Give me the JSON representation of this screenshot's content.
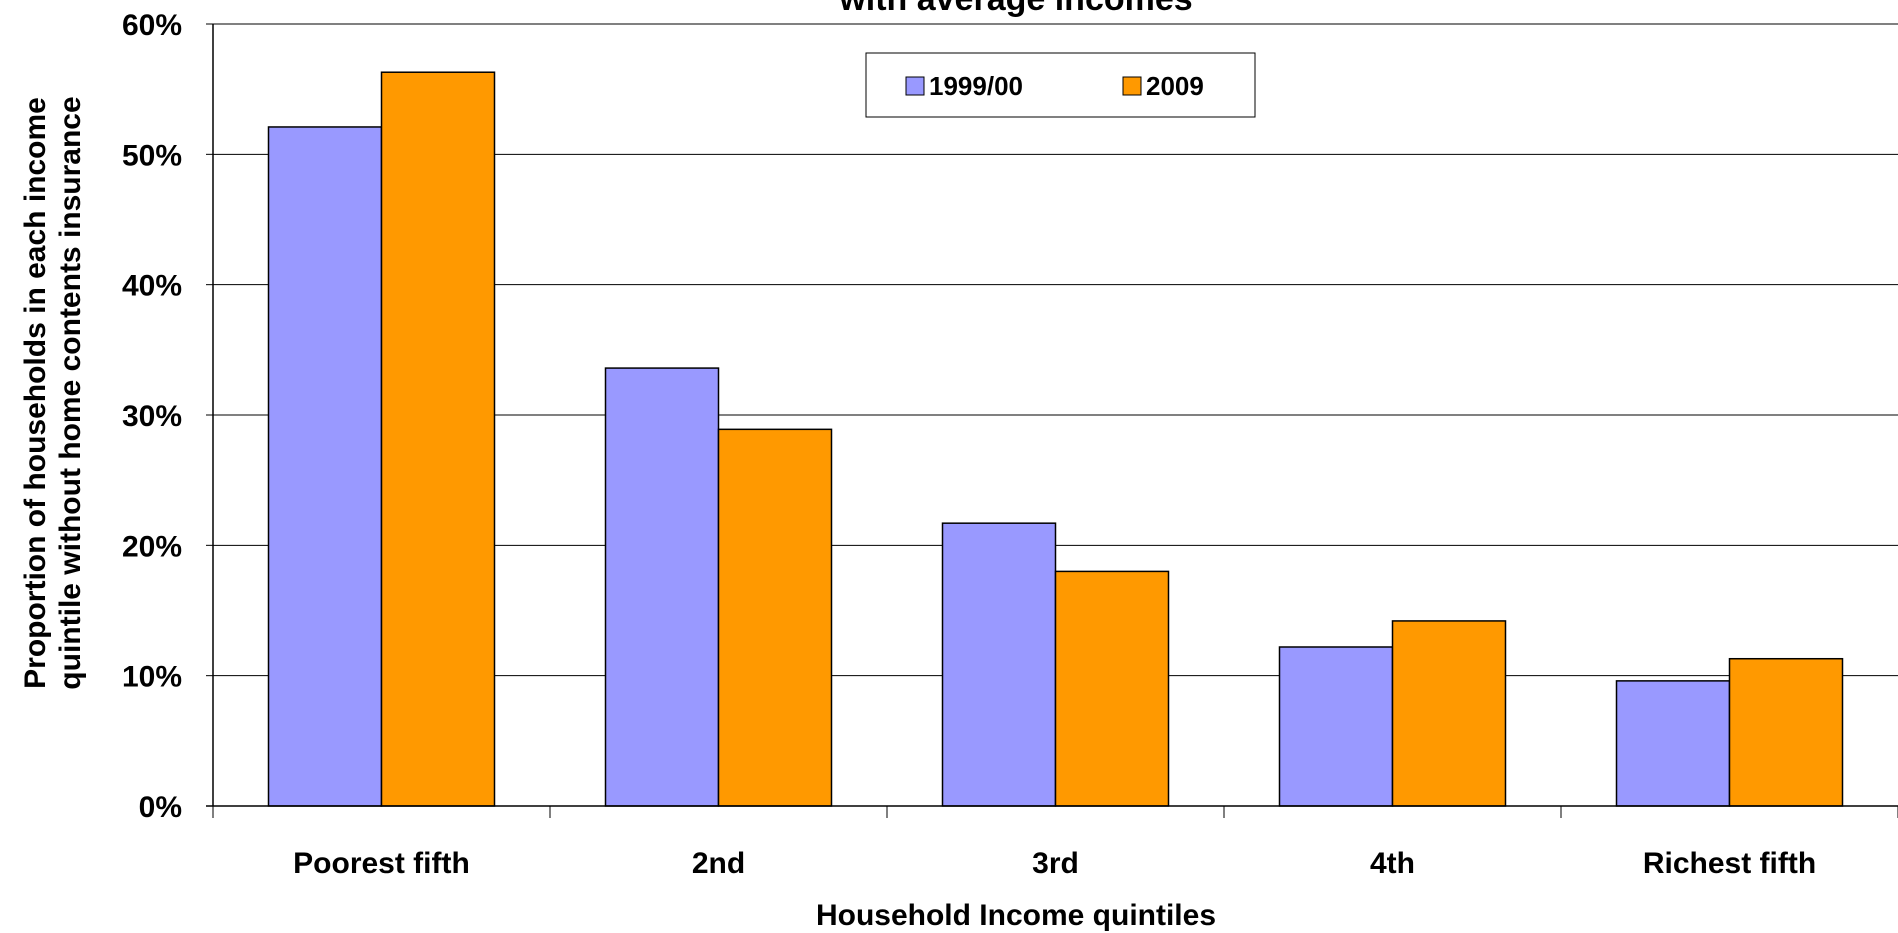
{
  "chart_data": {
    "type": "bar",
    "title": "with average incomes",
    "xlabel": "Household Income quintiles",
    "ylabel_lines": [
      "Proportion of households in each income",
      "quintile without home contents insurance"
    ],
    "categories": [
      "Poorest fifth",
      "2nd",
      "3rd",
      "4th",
      "Richest fifth"
    ],
    "series": [
      {
        "name": "1999/00",
        "values": [
          52.1,
          33.6,
          21.7,
          12.2,
          9.6
        ],
        "color": "#9999FF"
      },
      {
        "name": "2009",
        "values": [
          56.3,
          28.9,
          18.0,
          14.2,
          11.3
        ],
        "color": "#FF9900"
      }
    ],
    "ylim": [
      0,
      60
    ],
    "yticks": [
      "0%",
      "10%",
      "20%",
      "30%",
      "40%",
      "50%",
      "60%"
    ],
    "grid": true,
    "legend_position": "top-center"
  }
}
